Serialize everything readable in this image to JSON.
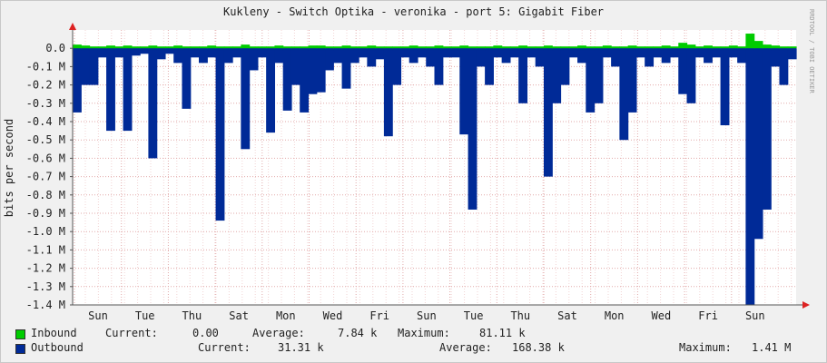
{
  "colors": {
    "inbound": "#00cc00",
    "inbound_edge": "#009900",
    "outbound": "#002a97",
    "grid": "#e2aaaa",
    "axis": "#888888",
    "arrow": "#dd2222"
  },
  "watermark": "RRDTOOL / TOBI OETIKER",
  "chart_data": {
    "type": "area",
    "title": "Kukleny - Switch  Optika - veronika - port 5: Gigabit Fiber",
    "ylabel": "bits per second",
    "xlabel": "",
    "ylim": [
      -1.4,
      0.1
    ],
    "y_unit": "M bits per second",
    "y_ticks": [
      "0.0",
      "-0.1 M",
      "-0.2 M",
      "-0.3 M",
      "-0.4 M",
      "-0.5 M",
      "-0.6 M",
      "-0.7 M",
      "-0.8 M",
      "-0.9 M",
      "-1.0 M",
      "-1.1 M",
      "-1.2 M",
      "-1.3 M",
      "-1.4 M"
    ],
    "x_ticks": [
      "Sun",
      "Tue",
      "Thu",
      "Sat",
      "Mon",
      "Wed",
      "Fri",
      "Sun",
      "Tue",
      "Thu",
      "Sat",
      "Mon",
      "Wed",
      "Fri",
      "Sun"
    ],
    "grid": true,
    "legend_placement": "bottom",
    "series": [
      {
        "name": "Inbound",
        "color": "#00cc00",
        "values": [
          0.02,
          0.015,
          0.01,
          0.01,
          0.015,
          0.01,
          0.015,
          0.01,
          0.01,
          0.015,
          0.01,
          0.01,
          0.015,
          0.01,
          0.01,
          0.01,
          0.015,
          0.01,
          0.01,
          0.01,
          0.02,
          0.01,
          0.01,
          0.01,
          0.015,
          0.01,
          0.01,
          0.01,
          0.015,
          0.015,
          0.01,
          0.01,
          0.015,
          0.01,
          0.01,
          0.015,
          0.01,
          0.01,
          0.01,
          0.01,
          0.015,
          0.01,
          0.01,
          0.015,
          0.01,
          0.01,
          0.015,
          0.01,
          0.01,
          0.01,
          0.015,
          0.01,
          0.01,
          0.015,
          0.01,
          0.01,
          0.015,
          0.01,
          0.01,
          0.01,
          0.015,
          0.01,
          0.01,
          0.015,
          0.01,
          0.01,
          0.015,
          0.01,
          0.01,
          0.01,
          0.015,
          0.01,
          0.03,
          0.02,
          0.01,
          0.015,
          0.01,
          0.01,
          0.015,
          0.01,
          0.08,
          0.04,
          0.02,
          0.015,
          0.01,
          0.01
        ]
      },
      {
        "name": "Outbound",
        "color": "#002a97",
        "values": [
          -0.35,
          -0.2,
          -0.2,
          -0.05,
          -0.45,
          -0.05,
          -0.45,
          -0.04,
          -0.03,
          -0.6,
          -0.06,
          -0.03,
          -0.08,
          -0.33,
          -0.05,
          -0.08,
          -0.05,
          -0.94,
          -0.08,
          -0.05,
          -0.55,
          -0.12,
          -0.05,
          -0.46,
          -0.08,
          -0.34,
          -0.2,
          -0.35,
          -0.25,
          -0.24,
          -0.12,
          -0.08,
          -0.22,
          -0.08,
          -0.05,
          -0.1,
          -0.06,
          -0.48,
          -0.2,
          -0.05,
          -0.08,
          -0.05,
          -0.1,
          -0.2,
          -0.05,
          -0.05,
          -0.47,
          -0.88,
          -0.1,
          -0.2,
          -0.05,
          -0.08,
          -0.05,
          -0.3,
          -0.05,
          -0.1,
          -0.7,
          -0.3,
          -0.2,
          -0.05,
          -0.08,
          -0.35,
          -0.3,
          -0.05,
          -0.1,
          -0.5,
          -0.35,
          -0.05,
          -0.1,
          -0.05,
          -0.08,
          -0.05,
          -0.25,
          -0.3,
          -0.05,
          -0.08,
          -0.05,
          -0.42,
          -0.05,
          -0.08,
          -1.4,
          -1.04,
          -0.88,
          -0.1,
          -0.2,
          -0.06
        ]
      }
    ]
  },
  "legend": {
    "inbound": {
      "label": "Inbound",
      "current_label": "Current:",
      "current": "0.00",
      "average_label": "Average:",
      "average": "7.84 k",
      "maximum_label": "Maximum:",
      "maximum": "81.11 k"
    },
    "outbound": {
      "label": "Outbound",
      "current_label": "Current:",
      "current": "31.31 k",
      "average_label": "Average:",
      "average": "168.38 k",
      "maximum_label": "Maximum:",
      "maximum": "1.41 M"
    }
  }
}
